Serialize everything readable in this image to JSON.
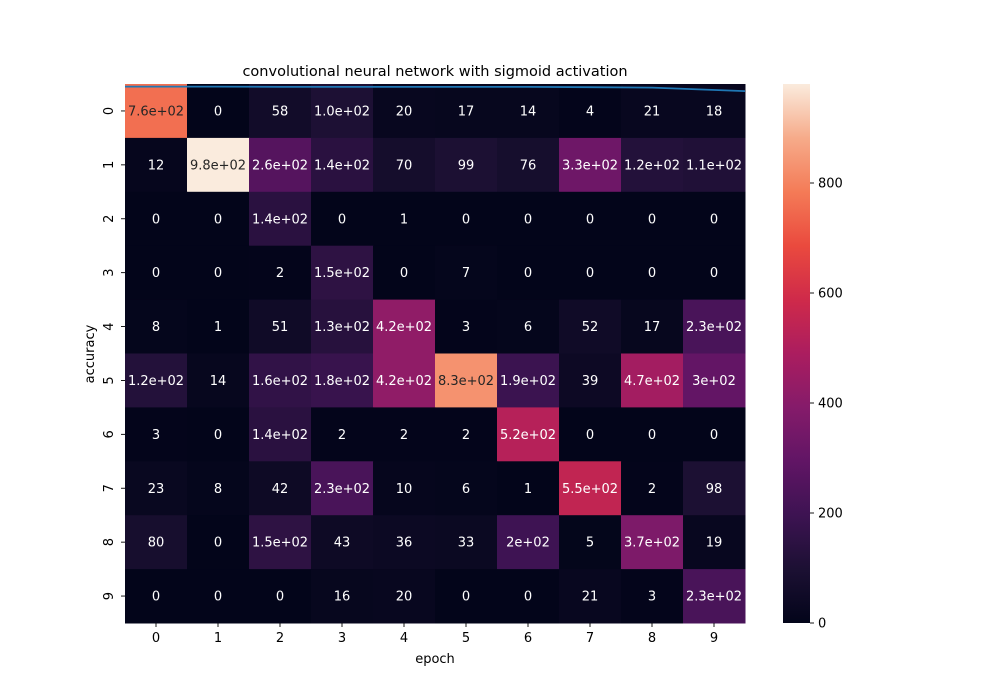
{
  "chart_data": {
    "type": "heatmap",
    "title": "convolutional neural network with sigmoid activation",
    "xlabel": "epoch",
    "ylabel": "accuracy",
    "x_categories": [
      "0",
      "1",
      "2",
      "3",
      "4",
      "5",
      "6",
      "7",
      "8",
      "9"
    ],
    "y_categories": [
      "0",
      "1",
      "2",
      "3",
      "4",
      "5",
      "6",
      "7",
      "8",
      "9"
    ],
    "values": [
      [
        760,
        0,
        58,
        100,
        20,
        17,
        14,
        4,
        21,
        18
      ],
      [
        12,
        980,
        260,
        140,
        70,
        99,
        76,
        330,
        120,
        110
      ],
      [
        0,
        0,
        140,
        0,
        1,
        0,
        0,
        0,
        0,
        0
      ],
      [
        0,
        0,
        2,
        150,
        0,
        7,
        0,
        0,
        0,
        0
      ],
      [
        8,
        1,
        51,
        130,
        420,
        3,
        6,
        52,
        17,
        230
      ],
      [
        120,
        14,
        160,
        180,
        420,
        830,
        190,
        39,
        470,
        300
      ],
      [
        3,
        0,
        140,
        2,
        2,
        2,
        520,
        0,
        0,
        0
      ],
      [
        23,
        8,
        42,
        230,
        10,
        6,
        1,
        550,
        2,
        98
      ],
      [
        80,
        0,
        150,
        43,
        36,
        33,
        200,
        5,
        370,
        19
      ],
      [
        0,
        0,
        0,
        16,
        20,
        0,
        0,
        21,
        3,
        230
      ]
    ],
    "annotations": [
      [
        "7.6e+02",
        "0",
        "58",
        "1.0e+02",
        "20",
        "17",
        "14",
        "4",
        "21",
        "18"
      ],
      [
        "12",
        "9.8e+02",
        "2.6e+02",
        "1.4e+02",
        "70",
        "99",
        "76",
        "3.3e+02",
        "1.2e+02",
        "1.1e+02"
      ],
      [
        "0",
        "0",
        "1.4e+02",
        "0",
        "1",
        "0",
        "0",
        "0",
        "0",
        "0"
      ],
      [
        "0",
        "0",
        "2",
        "1.5e+02",
        "0",
        "7",
        "0",
        "0",
        "0",
        "0"
      ],
      [
        "8",
        "1",
        "51",
        "1.3e+02",
        "4.2e+02",
        "3",
        "6",
        "52",
        "17",
        "2.3e+02"
      ],
      [
        "1.2e+02",
        "14",
        "1.6e+02",
        "1.8e+02",
        "4.2e+02",
        "8.3e+02",
        "1.9e+02",
        "39",
        "4.7e+02",
        "3e+02"
      ],
      [
        "3",
        "0",
        "1.4e+02",
        "2",
        "2",
        "2",
        "5.2e+02",
        "0",
        "0",
        "0"
      ],
      [
        "23",
        "8",
        "42",
        "2.3e+02",
        "10",
        "6",
        "1",
        "5.5e+02",
        "2",
        "98"
      ],
      [
        "80",
        "0",
        "1.5e+02",
        "43",
        "36",
        "33",
        "2e+02",
        "5",
        "3.7e+02",
        "19"
      ],
      [
        "0",
        "0",
        "0",
        "16",
        "20",
        "0",
        "0",
        "21",
        "3",
        "2.3e+02"
      ]
    ],
    "colorbar": {
      "min": 0,
      "max": 980,
      "ticks": [
        "0",
        "200",
        "400",
        "600",
        "800"
      ],
      "colormap": "rocket"
    },
    "line_series": {
      "color": "#1f77b4",
      "description_values_y_in_row_units": [
        0.08,
        0.08,
        0.09,
        0.09,
        0.09,
        0.09,
        0.09,
        0.1,
        0.11,
        0.22
      ]
    }
  }
}
